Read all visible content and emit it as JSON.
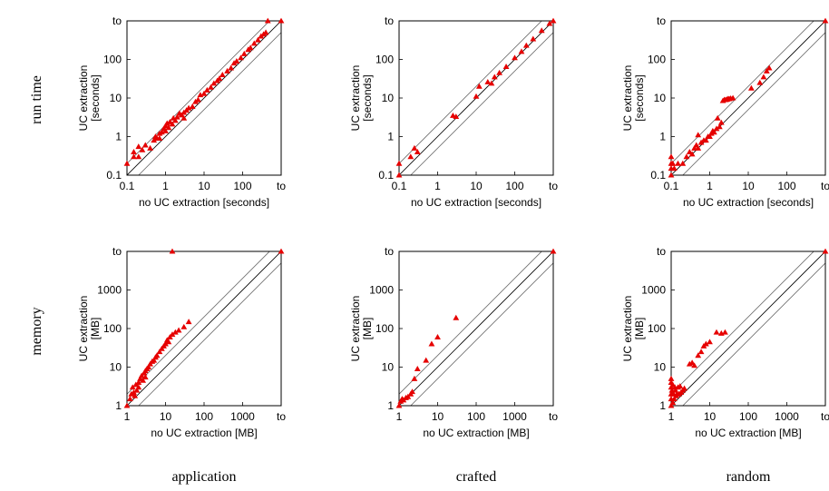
{
  "row_labels": [
    "run time",
    "memory"
  ],
  "col_labels": [
    "application",
    "crafted",
    "random"
  ],
  "chart_data": [
    {
      "type": "scatter",
      "row": 0,
      "col": 0,
      "scale": "log",
      "xlabel": "no UC extraction [seconds]",
      "ylabel_line1": "UC extraction",
      "ylabel_line2": "[seconds]",
      "xlim": [
        0.1,
        1000
      ],
      "ylim": [
        0.1,
        1000
      ],
      "ticks": [
        {
          "v": 0.1,
          "label": "0.1"
        },
        {
          "v": 1,
          "label": "1"
        },
        {
          "v": 10,
          "label": "10"
        },
        {
          "v": 100,
          "label": "100"
        },
        {
          "v": 1000,
          "label": "to"
        }
      ],
      "points": [
        [
          0.1,
          0.2
        ],
        [
          0.15,
          0.3
        ],
        [
          0.15,
          0.4
        ],
        [
          0.2,
          0.3
        ],
        [
          0.2,
          0.55
        ],
        [
          0.25,
          0.45
        ],
        [
          0.3,
          0.6
        ],
        [
          0.4,
          0.5
        ],
        [
          0.5,
          0.8
        ],
        [
          0.55,
          1
        ],
        [
          0.6,
          0.9
        ],
        [
          0.7,
          1.2
        ],
        [
          0.7,
          0.9
        ],
        [
          0.8,
          1.3
        ],
        [
          0.9,
          1.6
        ],
        [
          1,
          1.4
        ],
        [
          1,
          1.9
        ],
        [
          1.1,
          2.2
        ],
        [
          1.2,
          1.7
        ],
        [
          1.3,
          2.4
        ],
        [
          1.5,
          2.1
        ],
        [
          1.6,
          3
        ],
        [
          1.8,
          2.6
        ],
        [
          2,
          3.2
        ],
        [
          2.3,
          4
        ],
        [
          2.6,
          3.6
        ],
        [
          3,
          4.2
        ],
        [
          3,
          3
        ],
        [
          3.5,
          4.8
        ],
        [
          4,
          5.5
        ],
        [
          5,
          6
        ],
        [
          6,
          8
        ],
        [
          7,
          9
        ],
        [
          8,
          12
        ],
        [
          10,
          13
        ],
        [
          12,
          16
        ],
        [
          15,
          19
        ],
        [
          18,
          24
        ],
        [
          22,
          28
        ],
        [
          25,
          32
        ],
        [
          30,
          40
        ],
        [
          40,
          50
        ],
        [
          50,
          60
        ],
        [
          60,
          80
        ],
        [
          70,
          90
        ],
        [
          90,
          110
        ],
        [
          110,
          140
        ],
        [
          140,
          180
        ],
        [
          160,
          200
        ],
        [
          200,
          260
        ],
        [
          250,
          320
        ],
        [
          300,
          400
        ],
        [
          350,
          450
        ],
        [
          400,
          500
        ],
        [
          450,
          1000
        ],
        [
          1000,
          1000
        ]
      ]
    },
    {
      "type": "scatter",
      "row": 0,
      "col": 1,
      "scale": "log",
      "xlabel": "no UC extraction [seconds]",
      "ylabel_line1": "UC extraction",
      "ylabel_line2": "[seconds]",
      "xlim": [
        0.1,
        1000
      ],
      "ylim": [
        0.1,
        1000
      ],
      "ticks": [
        {
          "v": 0.1,
          "label": "0.1"
        },
        {
          "v": 1,
          "label": "1"
        },
        {
          "v": 10,
          "label": "10"
        },
        {
          "v": 100,
          "label": "100"
        },
        {
          "v": 1000,
          "label": "to"
        }
      ],
      "points": [
        [
          0.1,
          0.1
        ],
        [
          0.1,
          0.2
        ],
        [
          0.2,
          0.3
        ],
        [
          0.25,
          0.5
        ],
        [
          0.3,
          0.4
        ],
        [
          2.5,
          3.5
        ],
        [
          3,
          3.3
        ],
        [
          10,
          11
        ],
        [
          12,
          20
        ],
        [
          20,
          26
        ],
        [
          25,
          24
        ],
        [
          30,
          35
        ],
        [
          40,
          45
        ],
        [
          60,
          65
        ],
        [
          100,
          110
        ],
        [
          150,
          160
        ],
        [
          200,
          230
        ],
        [
          300,
          340
        ],
        [
          500,
          560
        ],
        [
          800,
          850
        ],
        [
          1000,
          1000
        ]
      ]
    },
    {
      "type": "scatter",
      "row": 0,
      "col": 2,
      "scale": "log",
      "xlabel": "no UC extraction [seconds]",
      "ylabel_line1": "UC extraction",
      "ylabel_line2": "[seconds]",
      "xlim": [
        0.1,
        1000
      ],
      "ylim": [
        0.1,
        1000
      ],
      "ticks": [
        {
          "v": 0.1,
          "label": "0.1"
        },
        {
          "v": 1,
          "label": "1"
        },
        {
          "v": 10,
          "label": "10"
        },
        {
          "v": 100,
          "label": "100"
        },
        {
          "v": 1000,
          "label": "to"
        }
      ],
      "points": [
        [
          0.1,
          0.1
        ],
        [
          0.1,
          0.15
        ],
        [
          0.1,
          0.2
        ],
        [
          0.1,
          0.3
        ],
        [
          0.11,
          0.2
        ],
        [
          0.12,
          0.15
        ],
        [
          0.15,
          0.2
        ],
        [
          0.2,
          0.2
        ],
        [
          0.25,
          0.3
        ],
        [
          0.3,
          0.4
        ],
        [
          0.35,
          0.35
        ],
        [
          0.4,
          0.5
        ],
        [
          0.45,
          0.6
        ],
        [
          0.5,
          0.5
        ],
        [
          0.5,
          1.1
        ],
        [
          0.6,
          0.7
        ],
        [
          0.7,
          0.8
        ],
        [
          0.8,
          0.8
        ],
        [
          0.9,
          1
        ],
        [
          1,
          1
        ],
        [
          1.1,
          1.2
        ],
        [
          1.2,
          1.4
        ],
        [
          1.3,
          1.3
        ],
        [
          1.5,
          1.6
        ],
        [
          1.6,
          3
        ],
        [
          1.8,
          1.8
        ],
        [
          2,
          2.3
        ],
        [
          2.2,
          8.5
        ],
        [
          2.4,
          9
        ],
        [
          2.6,
          9
        ],
        [
          2.8,
          9.2
        ],
        [
          3,
          9.5
        ],
        [
          3.2,
          9.5
        ],
        [
          3.5,
          9.8
        ],
        [
          4,
          10
        ],
        [
          12,
          18
        ],
        [
          20,
          25
        ],
        [
          25,
          35
        ],
        [
          30,
          50
        ],
        [
          35,
          60
        ],
        [
          1000,
          1000
        ]
      ]
    },
    {
      "type": "scatter",
      "row": 1,
      "col": 0,
      "scale": "log",
      "xlabel": "no UC extraction [MB]",
      "ylabel_line1": "UC extraction",
      "ylabel_line2": "[MB]",
      "xlim": [
        1,
        10000
      ],
      "ylim": [
        1,
        10000
      ],
      "ticks": [
        {
          "v": 1,
          "label": "1"
        },
        {
          "v": 10,
          "label": "10"
        },
        {
          "v": 100,
          "label": "100"
        },
        {
          "v": 1000,
          "label": "1000"
        },
        {
          "v": 10000,
          "label": "to"
        }
      ],
      "points": [
        [
          1,
          1
        ],
        [
          1.2,
          1.5
        ],
        [
          1.3,
          2
        ],
        [
          1.4,
          3
        ],
        [
          1.5,
          2.2
        ],
        [
          1.6,
          1.8
        ],
        [
          1.7,
          3.5
        ],
        [
          1.8,
          2.5
        ],
        [
          2,
          3
        ],
        [
          2,
          4
        ],
        [
          2.2,
          5
        ],
        [
          2.4,
          6
        ],
        [
          2.6,
          4.5
        ],
        [
          2.8,
          7
        ],
        [
          3,
          8
        ],
        [
          3,
          5.5
        ],
        [
          3.3,
          9
        ],
        [
          3.6,
          10
        ],
        [
          4,
          12
        ],
        [
          4.5,
          14
        ],
        [
          5,
          15
        ],
        [
          5.5,
          18
        ],
        [
          6,
          20
        ],
        [
          7,
          25
        ],
        [
          8,
          30
        ],
        [
          9,
          35
        ],
        [
          10,
          40
        ],
        [
          11,
          50
        ],
        [
          12,
          45
        ],
        [
          13,
          60
        ],
        [
          15,
          70
        ],
        [
          18,
          80
        ],
        [
          22,
          90
        ],
        [
          30,
          110
        ],
        [
          40,
          150
        ],
        [
          15,
          10000
        ],
        [
          10000,
          10000
        ]
      ]
    },
    {
      "type": "scatter",
      "row": 1,
      "col": 1,
      "scale": "log",
      "xlabel": "no UC extraction [MB]",
      "ylabel_line1": "UC extraction",
      "ylabel_line2": "[MB]",
      "xlim": [
        1,
        10000
      ],
      "ylim": [
        1,
        10000
      ],
      "ticks": [
        {
          "v": 1,
          "label": "1"
        },
        {
          "v": 10,
          "label": "10"
        },
        {
          "v": 100,
          "label": "100"
        },
        {
          "v": 1000,
          "label": "1000"
        },
        {
          "v": 10000,
          "label": "to"
        }
      ],
      "points": [
        [
          1,
          1
        ],
        [
          1.1,
          1.3
        ],
        [
          1.2,
          1.5
        ],
        [
          1.3,
          1.4
        ],
        [
          1.5,
          1.6
        ],
        [
          1.7,
          1.7
        ],
        [
          2,
          2
        ],
        [
          2.2,
          2.3
        ],
        [
          2.5,
          5
        ],
        [
          3,
          9
        ],
        [
          5,
          15
        ],
        [
          7,
          40
        ],
        [
          10,
          60
        ],
        [
          30,
          190
        ],
        [
          10000,
          10000
        ]
      ]
    },
    {
      "type": "scatter",
      "row": 1,
      "col": 2,
      "scale": "log",
      "xlabel": "no UC extraction [MB]",
      "ylabel_line1": "UC extraction",
      "ylabel_line2": "[MB]",
      "xlim": [
        1,
        10000
      ],
      "ylim": [
        1,
        10000
      ],
      "ticks": [
        {
          "v": 1,
          "label": "1"
        },
        {
          "v": 10,
          "label": "10"
        },
        {
          "v": 100,
          "label": "100"
        },
        {
          "v": 1000,
          "label": "1000"
        },
        {
          "v": 10000,
          "label": "to"
        }
      ],
      "points": [
        [
          1,
          1
        ],
        [
          1,
          1.5
        ],
        [
          1,
          2
        ],
        [
          1,
          3
        ],
        [
          1,
          4
        ],
        [
          1,
          5
        ],
        [
          1.05,
          2.5
        ],
        [
          1.1,
          1.2
        ],
        [
          1.1,
          3.5
        ],
        [
          1.15,
          2
        ],
        [
          1.2,
          1.5
        ],
        [
          1.25,
          3
        ],
        [
          1.3,
          2.5
        ],
        [
          1.35,
          1.8
        ],
        [
          1.4,
          2
        ],
        [
          1.5,
          3
        ],
        [
          1.6,
          2
        ],
        [
          1.7,
          3.2
        ],
        [
          1.8,
          2.2
        ],
        [
          2,
          2.5
        ],
        [
          2.2,
          2.8
        ],
        [
          3,
          12
        ],
        [
          3.5,
          13
        ],
        [
          4,
          11
        ],
        [
          5,
          20
        ],
        [
          6,
          25
        ],
        [
          7,
          35
        ],
        [
          8,
          40
        ],
        [
          10,
          45
        ],
        [
          15,
          80
        ],
        [
          20,
          75
        ],
        [
          25,
          80
        ],
        [
          10000,
          10000
        ]
      ]
    }
  ]
}
